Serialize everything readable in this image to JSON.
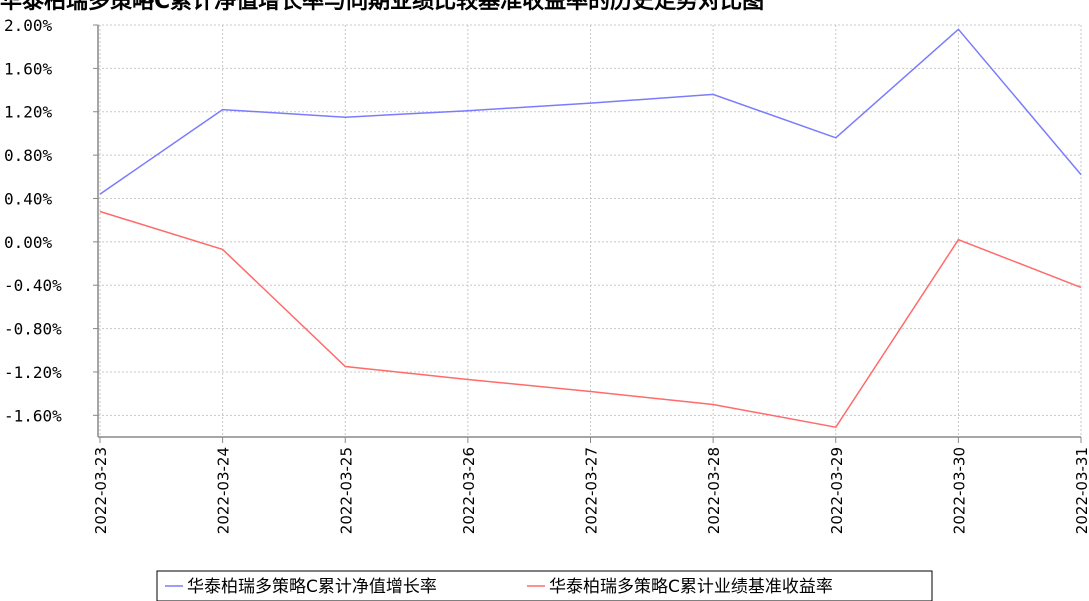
{
  "chart_data": {
    "type": "line",
    "title": "华泰柏瑞多策略C累计净值增长率与同期业绩比较基准收益率的历史走势对比图",
    "x": [
      "2022-03-23",
      "2022-03-24",
      "2022-03-25",
      "2022-03-26",
      "2022-03-27",
      "2022-03-28",
      "2022-03-29",
      "2022-03-30",
      "2022-03-31"
    ],
    "ylim": [
      -1.8,
      2.0
    ],
    "yticks": [
      2.0,
      1.6,
      1.2,
      0.8,
      0.4,
      0.0,
      -0.4,
      -0.8,
      -1.2,
      -1.6
    ],
    "ytick_labels": [
      "2.00%",
      "1.60%",
      "1.20%",
      "0.80%",
      "0.40%",
      "0.00%",
      "-0.40%",
      "-0.80%",
      "-1.20%",
      "-1.60%"
    ],
    "grid": true,
    "legend_position": "bottom",
    "series": [
      {
        "name": "华泰柏瑞多策略C累计净值增长率",
        "color": "#7b7bff",
        "values": [
          0.44,
          1.22,
          1.15,
          1.21,
          1.28,
          1.36,
          0.96,
          1.96,
          0.62
        ]
      },
      {
        "name": "华泰柏瑞多策略C累计业绩基准收益率",
        "color": "#ff6b6b",
        "values": [
          0.28,
          -0.07,
          -1.15,
          -1.27,
          -1.38,
          -1.5,
          -1.71,
          0.02,
          -0.42
        ]
      }
    ]
  }
}
